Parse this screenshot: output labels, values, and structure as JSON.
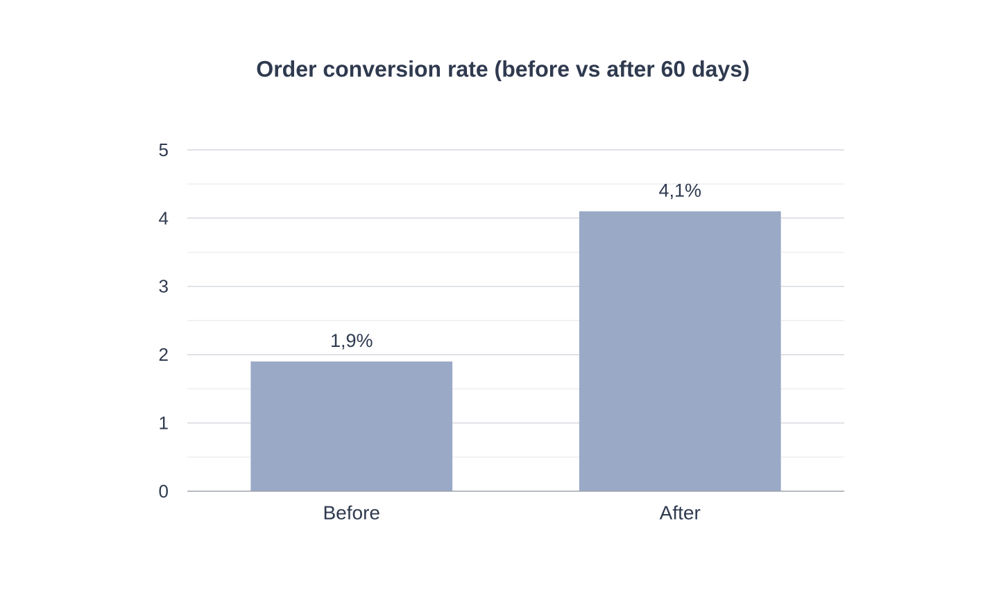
{
  "chart_data": {
    "type": "bar",
    "title": "Order conversion rate (before vs after 60 days)",
    "categories": [
      "Before",
      "After"
    ],
    "values": [
      1.9,
      4.1
    ],
    "value_labels": [
      "1,9%",
      "4,1%"
    ],
    "color": "#9aa9c6",
    "ylim": [
      0,
      5
    ],
    "yticks": [
      0,
      1,
      2,
      3,
      4,
      5
    ],
    "minor_yticks": [
      0.5,
      1.5,
      2.5,
      3.5,
      4.5
    ],
    "grid": true
  }
}
